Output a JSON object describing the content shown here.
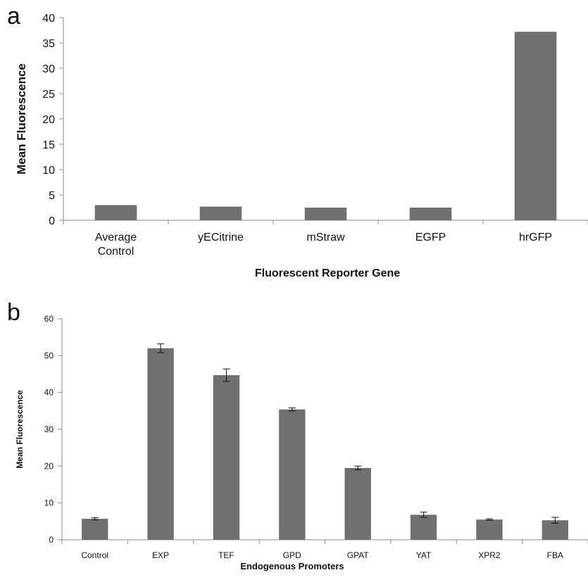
{
  "panels": {
    "a": "a",
    "b": "b"
  },
  "chart_data": [
    {
      "type": "bar",
      "categories": [
        [
          "Average",
          "Control"
        ],
        [
          "yECitrine"
        ],
        [
          "mStraw"
        ],
        [
          "EGFP"
        ],
        [
          "hrGFP"
        ]
      ],
      "values": [
        3.0,
        2.7,
        2.5,
        2.5,
        37.2
      ],
      "xlabel": "Fluorescent Reporter Gene",
      "ylabel": "Mean Fluorescence",
      "ylim": [
        0,
        40
      ],
      "yticks": [
        0,
        5,
        10,
        15,
        20,
        25,
        30,
        35,
        40
      ],
      "grid": false,
      "bar_color": "#707070"
    },
    {
      "type": "bar",
      "categories": [
        "Control",
        "EXP",
        "TEF",
        "GPD",
        "GPAT",
        "YAT",
        "XPR2",
        "FBA"
      ],
      "values": [
        5.7,
        52.0,
        44.7,
        35.4,
        19.5,
        6.8,
        5.5,
        5.3
      ],
      "errors": [
        0.3,
        1.2,
        1.7,
        0.4,
        0.5,
        0.7,
        0.2,
        0.8
      ],
      "xlabel": "Endogenous Promoters",
      "ylabel": "Mean Fluorescence",
      "ylim": [
        0,
        60
      ],
      "yticks": [
        0,
        10,
        20,
        30,
        40,
        50,
        60
      ],
      "grid": false,
      "bar_color": "#707070"
    }
  ]
}
